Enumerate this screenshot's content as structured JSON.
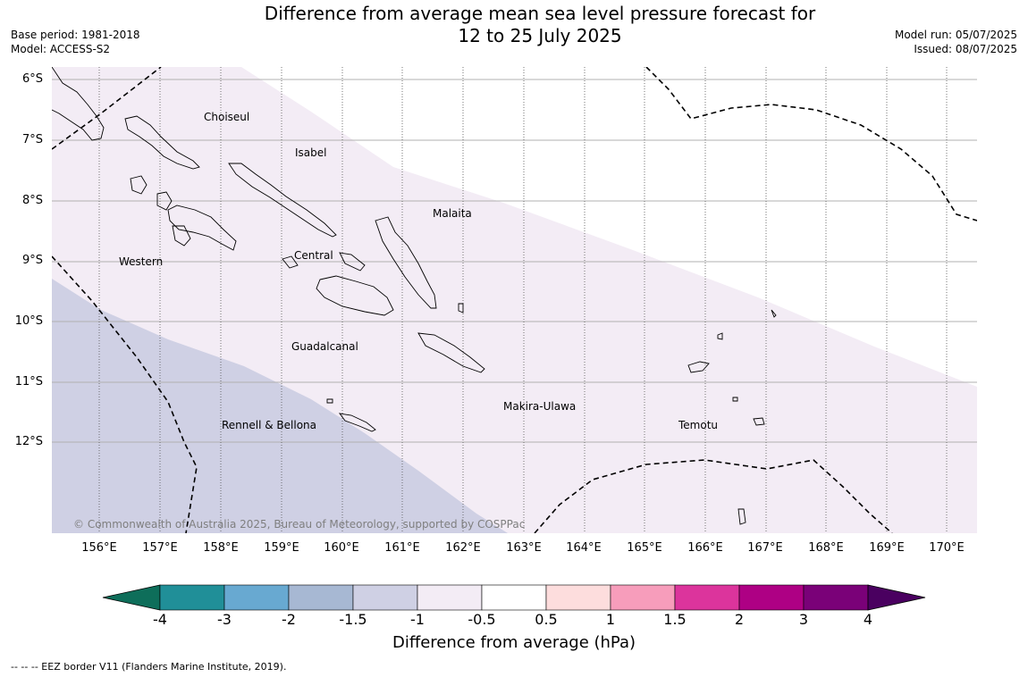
{
  "title_line1": "Difference from average mean sea level pressure forecast for",
  "title_line2": "12 to 25 July 2025",
  "base_period": "Base period: 1981-2018",
  "model": "Model: ACCESS-S2",
  "model_run": "Model run: 05/07/2025",
  "issued": "Issued: 08/07/2025",
  "lat_labels": [
    "6°S",
    "7°S",
    "8°S",
    "9°S",
    "10°S",
    "11°S",
    "12°S"
  ],
  "lon_labels": [
    "156°E",
    "157°E",
    "158°E",
    "159°E",
    "160°E",
    "161°E",
    "162°E",
    "163°E",
    "164°E",
    "165°E",
    "166°E",
    "167°E",
    "168°E",
    "169°E",
    "170°E"
  ],
  "regions": {
    "choiseul": "Choiseul",
    "isabel": "Isabel",
    "malaita": "Malaita",
    "western": "Western",
    "central": "Central",
    "guadalcanal": "Guadalcanal",
    "makira": "Makira-Ulawa",
    "temotu": "Temotu",
    "rennell": "Rennell & Bellona"
  },
  "copyright": "© Commonwealth of Australia 2025, Bureau of Meteorology, supported by COSPPac",
  "colorbar": {
    "label": "Difference from average (hPa)",
    "ticks": [
      "-4",
      "-3",
      "-2",
      "-1.5",
      "-1",
      "-0.5",
      "0.5",
      "1",
      "1.5",
      "2",
      "3",
      "4"
    ],
    "colors": [
      "#0e6e5a",
      "#208f98",
      "#68a9d1",
      "#a7b8d3",
      "#cfd0e4",
      "#f3ecf5",
      "#ffffff",
      "#fddddd",
      "#f79dbb",
      "#dc349c",
      "#ae0084",
      "#7a0178",
      "#4a0060"
    ]
  },
  "anomaly_colors": {
    "neg_1_5_to_neg_1": "#cfd0e4",
    "neg_1_to_neg_0_5": "#f3ecf5",
    "neutral": "#ffffff"
  },
  "footnote": "--  --  -- EEZ border V11 (Flanders Marine Institute, 2019)."
}
